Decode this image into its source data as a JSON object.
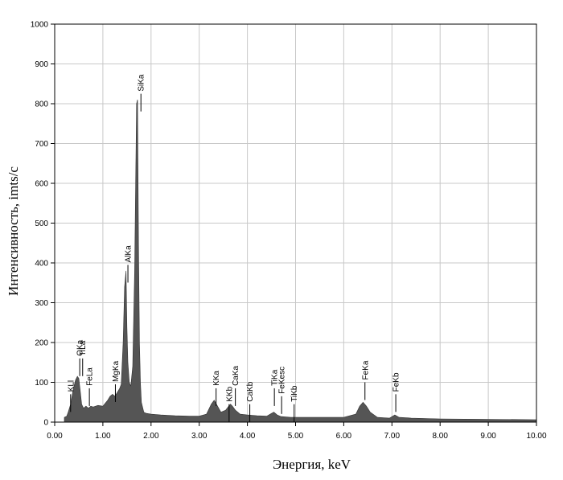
{
  "chart_data": {
    "type": "area",
    "title": "",
    "xlabel": "Энергия, keV",
    "ylabel": "Интенсивность, imts/c",
    "xlim": [
      0,
      10
    ],
    "ylim": [
      0,
      1000
    ],
    "x_ticks": [
      0,
      1,
      2,
      3,
      4,
      5,
      6,
      7,
      8,
      9,
      10
    ],
    "x_tick_labels": [
      "0.00",
      "1.00",
      "2.00",
      "3.00",
      "4.00",
      "5.00",
      "6.00",
      "7.00",
      "8.00",
      "9.00",
      "10.00"
    ],
    "y_ticks": [
      0,
      100,
      200,
      300,
      400,
      500,
      600,
      700,
      800,
      900,
      1000
    ],
    "y_tick_labels": [
      "0",
      "100",
      "200",
      "300",
      "400",
      "500",
      "600",
      "700",
      "800",
      "900",
      "1000"
    ],
    "grid": true,
    "fill_color": "#555555",
    "spectrum": {
      "x": [
        0.2,
        0.25,
        0.28,
        0.33,
        0.38,
        0.43,
        0.47,
        0.5,
        0.53,
        0.56,
        0.6,
        0.65,
        0.7,
        0.75,
        0.8,
        0.9,
        1.0,
        1.1,
        1.15,
        1.2,
        1.25,
        1.3,
        1.35,
        1.38,
        1.42,
        1.45,
        1.48,
        1.5,
        1.52,
        1.55,
        1.58,
        1.62,
        1.66,
        1.7,
        1.72,
        1.74,
        1.76,
        1.78,
        1.8,
        1.85,
        1.9,
        2.0,
        2.2,
        2.5,
        2.8,
        3.0,
        3.15,
        3.25,
        3.31,
        3.38,
        3.45,
        3.55,
        3.6,
        3.65,
        3.69,
        3.75,
        3.85,
        4.0,
        4.2,
        4.4,
        4.5,
        4.55,
        4.62,
        4.7,
        4.9,
        5.2,
        5.5,
        6.0,
        6.25,
        6.33,
        6.4,
        6.47,
        6.55,
        6.7,
        6.95,
        7.06,
        7.15,
        7.4,
        8.0,
        9.0,
        10.0
      ],
      "y": [
        12,
        15,
        25,
        45,
        80,
        105,
        115,
        110,
        80,
        45,
        35,
        40,
        35,
        40,
        38,
        42,
        40,
        55,
        65,
        70,
        65,
        75,
        85,
        95,
        200,
        340,
        380,
        240,
        150,
        100,
        90,
        140,
        380,
        800,
        810,
        450,
        200,
        100,
        50,
        25,
        22,
        20,
        18,
        16,
        15,
        15,
        20,
        45,
        55,
        40,
        25,
        30,
        38,
        45,
        40,
        30,
        20,
        18,
        16,
        15,
        22,
        25,
        18,
        14,
        12,
        12,
        12,
        12,
        20,
        40,
        50,
        40,
        25,
        12,
        10,
        18,
        12,
        10,
        8,
        7,
        6
      ]
    },
    "peak_labels": [
      {
        "text": "KLl",
        "x": 0.33,
        "value": 70
      },
      {
        "text": "OKa",
        "x": 0.52,
        "value": 160
      },
      {
        "text": "TiLa",
        "x": 0.58,
        "value": 160
      },
      {
        "text": "FeLa",
        "x": 0.72,
        "value": 85
      },
      {
        "text": "MgKa",
        "x": 1.26,
        "value": 95
      },
      {
        "text": "AlKa",
        "x": 1.52,
        "value": 395
      },
      {
        "text": "SiKa",
        "x": 1.79,
        "value": 825
      },
      {
        "text": "KKa",
        "x": 3.35,
        "value": 85
      },
      {
        "text": "KKb",
        "x": 3.62,
        "value": 45
      },
      {
        "text": "CaKa",
        "x": 3.75,
        "value": 85
      },
      {
        "text": "CaKb",
        "x": 4.05,
        "value": 45
      },
      {
        "text": "TiKa",
        "x": 4.56,
        "value": 85
      },
      {
        "text": "FeKesc",
        "x": 4.71,
        "value": 65
      },
      {
        "text": "TiKb",
        "x": 4.97,
        "value": 45
      },
      {
        "text": "FeKa",
        "x": 6.44,
        "value": 100
      },
      {
        "text": "FeKb",
        "x": 7.08,
        "value": 70
      }
    ]
  }
}
